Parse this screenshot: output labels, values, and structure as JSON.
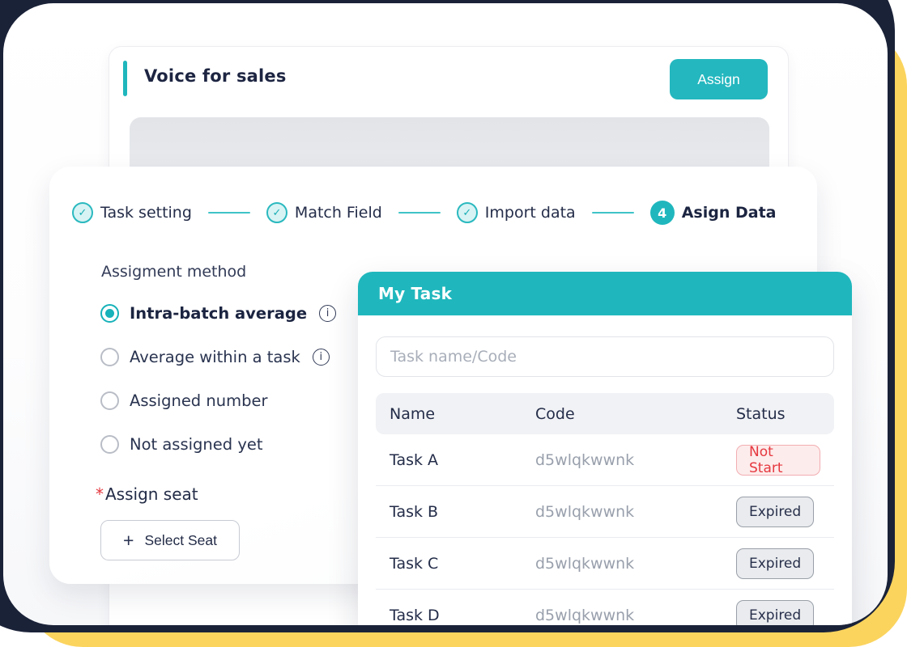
{
  "colors": {
    "teal": "#1fb7bd",
    "navy": "#1a2238",
    "yellow": "#fbd45e",
    "red": "#e5383f"
  },
  "voice_card": {
    "title": "Voice for sales",
    "assign_button": "Assign"
  },
  "stepper": {
    "steps": [
      {
        "label": "Task setting",
        "state": "done"
      },
      {
        "label": "Match Field",
        "state": "done"
      },
      {
        "label": "Import data",
        "state": "done"
      },
      {
        "label": "Asign Data",
        "state": "current",
        "number": "4"
      }
    ]
  },
  "icons": {
    "check": "✓",
    "info": "i",
    "plus": "+"
  },
  "assignment": {
    "section_label": "Assigment method",
    "options": [
      {
        "label": "Intra-batch average",
        "selected": true,
        "info": true
      },
      {
        "label": "Average within a task",
        "selected": false,
        "info": true
      },
      {
        "label": "Assigned number",
        "selected": false,
        "info": false
      },
      {
        "label": "Not assigned yet",
        "selected": false,
        "info": false
      }
    ],
    "required_mark": "*",
    "assign_seat_label": "Assign seat",
    "select_seat_button": "Select Seat"
  },
  "my_task": {
    "title": "My Task",
    "search_placeholder": "Task name/Code",
    "table": {
      "headers": [
        "Name",
        "Code",
        "Status"
      ],
      "rows": [
        {
          "name": "Task A",
          "code": "d5wlqkwwnk",
          "status": "Not Start",
          "status_type": "not-start"
        },
        {
          "name": "Task B",
          "code": "d5wlqkwwnk",
          "status": "Expired",
          "status_type": "expired"
        },
        {
          "name": "Task C",
          "code": "d5wlqkwwnk",
          "status": "Expired",
          "status_type": "expired"
        },
        {
          "name": "Task D",
          "code": "d5wlqkwwnk",
          "status": "Expired",
          "status_type": "expired"
        }
      ]
    }
  }
}
